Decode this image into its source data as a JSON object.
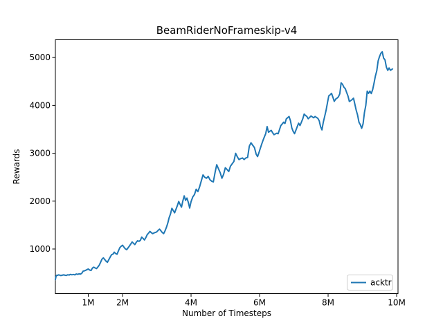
{
  "chart_data": {
    "type": "line",
    "title": "BeamRiderNoFrameskip-v4",
    "xlabel": "Number of Timesteps",
    "ylabel": "Rewards",
    "xlim": [
      0.04,
      10.04
    ],
    "ylim": [
      68,
      5371
    ],
    "grid": false,
    "legend": {
      "position": "lower right",
      "border_color": "#cccccc"
    },
    "x_unit": "millions",
    "xticks": [
      {
        "value": 1,
        "label": "1M"
      },
      {
        "value": 2,
        "label": "2M"
      },
      {
        "value": 4,
        "label": "4M"
      },
      {
        "value": 6,
        "label": "6M"
      },
      {
        "value": 8,
        "label": "8M"
      },
      {
        "value": 10,
        "label": "10M"
      }
    ],
    "yticks": [
      {
        "value": 1000,
        "label": "1000"
      },
      {
        "value": 2000,
        "label": "2000"
      },
      {
        "value": 3000,
        "label": "3000"
      },
      {
        "value": 4000,
        "label": "4000"
      },
      {
        "value": 5000,
        "label": "5000"
      }
    ],
    "series": [
      {
        "name": "acktr",
        "color": "#1f77b4",
        "points": [
          [
            0.04,
            360
          ],
          [
            0.06,
            430
          ],
          [
            0.08,
            452
          ],
          [
            0.1,
            448
          ],
          [
            0.13,
            460
          ],
          [
            0.16,
            455
          ],
          [
            0.2,
            445
          ],
          [
            0.24,
            452
          ],
          [
            0.28,
            460
          ],
          [
            0.32,
            452
          ],
          [
            0.36,
            447
          ],
          [
            0.4,
            462
          ],
          [
            0.44,
            455
          ],
          [
            0.48,
            470
          ],
          [
            0.52,
            461
          ],
          [
            0.57,
            468
          ],
          [
            0.61,
            459
          ],
          [
            0.65,
            478
          ],
          [
            0.69,
            469
          ],
          [
            0.73,
            481
          ],
          [
            0.77,
            474
          ],
          [
            0.81,
            492
          ],
          [
            0.85,
            538
          ],
          [
            0.9,
            547
          ],
          [
            0.95,
            563
          ],
          [
            1.0,
            582
          ],
          [
            1.04,
            561
          ],
          [
            1.08,
            551
          ],
          [
            1.12,
            601
          ],
          [
            1.16,
            620
          ],
          [
            1.2,
            604
          ],
          [
            1.24,
            589
          ],
          [
            1.28,
            625
          ],
          [
            1.32,
            662
          ],
          [
            1.36,
            722
          ],
          [
            1.4,
            788
          ],
          [
            1.44,
            815
          ],
          [
            1.48,
            779
          ],
          [
            1.52,
            744
          ],
          [
            1.56,
            723
          ],
          [
            1.6,
            778
          ],
          [
            1.64,
            833
          ],
          [
            1.68,
            882
          ],
          [
            1.72,
            893
          ],
          [
            1.76,
            934
          ],
          [
            1.8,
            905
          ],
          [
            1.84,
            890
          ],
          [
            1.88,
            962
          ],
          [
            1.92,
            1028
          ],
          [
            1.96,
            1057
          ],
          [
            2.0,
            1079
          ],
          [
            2.04,
            1040
          ],
          [
            2.08,
            1004
          ],
          [
            2.12,
            986
          ],
          [
            2.16,
            1022
          ],
          [
            2.2,
            1061
          ],
          [
            2.24,
            1104
          ],
          [
            2.28,
            1148
          ],
          [
            2.32,
            1119
          ],
          [
            2.36,
            1092
          ],
          [
            2.4,
            1139
          ],
          [
            2.44,
            1174
          ],
          [
            2.48,
            1161
          ],
          [
            2.52,
            1180
          ],
          [
            2.56,
            1248
          ],
          [
            2.6,
            1221
          ],
          [
            2.64,
            1190
          ],
          [
            2.68,
            1239
          ],
          [
            2.72,
            1301
          ],
          [
            2.76,
            1331
          ],
          [
            2.8,
            1368
          ],
          [
            2.84,
            1341
          ],
          [
            2.88,
            1321
          ],
          [
            2.92,
            1336
          ],
          [
            2.96,
            1345
          ],
          [
            3.0,
            1359
          ],
          [
            3.04,
            1390
          ],
          [
            3.08,
            1414
          ],
          [
            3.12,
            1379
          ],
          [
            3.16,
            1346
          ],
          [
            3.2,
            1321
          ],
          [
            3.24,
            1379
          ],
          [
            3.28,
            1451
          ],
          [
            3.32,
            1540
          ],
          [
            3.36,
            1652
          ],
          [
            3.4,
            1731
          ],
          [
            3.44,
            1849
          ],
          [
            3.48,
            1804
          ],
          [
            3.52,
            1756
          ],
          [
            3.56,
            1829
          ],
          [
            3.6,
            1905
          ],
          [
            3.64,
            1993
          ],
          [
            3.68,
            1930
          ],
          [
            3.72,
            1874
          ],
          [
            3.76,
            2001
          ],
          [
            3.8,
            2110
          ],
          [
            3.84,
            2016
          ],
          [
            3.88,
            2064
          ],
          [
            3.92,
            1972
          ],
          [
            3.96,
            1856
          ],
          [
            4.0,
            1989
          ],
          [
            4.05,
            2088
          ],
          [
            4.1,
            2139
          ],
          [
            4.15,
            2249
          ],
          [
            4.2,
            2199
          ],
          [
            4.25,
            2301
          ],
          [
            4.3,
            2428
          ],
          [
            4.35,
            2548
          ],
          [
            4.4,
            2498
          ],
          [
            4.45,
            2478
          ],
          [
            4.5,
            2519
          ],
          [
            4.55,
            2449
          ],
          [
            4.6,
            2417
          ],
          [
            4.65,
            2401
          ],
          [
            4.7,
            2598
          ],
          [
            4.75,
            2761
          ],
          [
            4.8,
            2676
          ],
          [
            4.85,
            2595
          ],
          [
            4.9,
            2478
          ],
          [
            4.95,
            2558
          ],
          [
            5.0,
            2698
          ],
          [
            5.05,
            2660
          ],
          [
            5.1,
            2619
          ],
          [
            5.15,
            2729
          ],
          [
            5.2,
            2779
          ],
          [
            5.25,
            2830
          ],
          [
            5.3,
            2999
          ],
          [
            5.35,
            2928
          ],
          [
            5.4,
            2869
          ],
          [
            5.45,
            2888
          ],
          [
            5.5,
            2901
          ],
          [
            5.55,
            2869
          ],
          [
            5.6,
            2903
          ],
          [
            5.65,
            2912
          ],
          [
            5.7,
            3148
          ],
          [
            5.75,
            3219
          ],
          [
            5.8,
            3168
          ],
          [
            5.85,
            3119
          ],
          [
            5.9,
            2979
          ],
          [
            5.94,
            2930
          ],
          [
            5.98,
            3008
          ],
          [
            6.02,
            3099
          ],
          [
            6.06,
            3188
          ],
          [
            6.1,
            3270
          ],
          [
            6.14,
            3341
          ],
          [
            6.18,
            3412
          ],
          [
            6.22,
            3557
          ],
          [
            6.26,
            3439
          ],
          [
            6.3,
            3461
          ],
          [
            6.34,
            3478
          ],
          [
            6.38,
            3430
          ],
          [
            6.42,
            3388
          ],
          [
            6.46,
            3404
          ],
          [
            6.5,
            3419
          ],
          [
            6.54,
            3408
          ],
          [
            6.58,
            3489
          ],
          [
            6.62,
            3578
          ],
          [
            6.66,
            3612
          ],
          [
            6.7,
            3648
          ],
          [
            6.74,
            3622
          ],
          [
            6.78,
            3718
          ],
          [
            6.82,
            3744
          ],
          [
            6.86,
            3769
          ],
          [
            6.9,
            3682
          ],
          [
            6.94,
            3528
          ],
          [
            6.98,
            3458
          ],
          [
            7.02,
            3409
          ],
          [
            7.06,
            3481
          ],
          [
            7.1,
            3559
          ],
          [
            7.14,
            3628
          ],
          [
            7.18,
            3579
          ],
          [
            7.22,
            3648
          ],
          [
            7.26,
            3719
          ],
          [
            7.3,
            3818
          ],
          [
            7.34,
            3792
          ],
          [
            7.38,
            3768
          ],
          [
            7.42,
            3721
          ],
          [
            7.46,
            3748
          ],
          [
            7.5,
            3779
          ],
          [
            7.54,
            3759
          ],
          [
            7.58,
            3741
          ],
          [
            7.62,
            3768
          ],
          [
            7.66,
            3748
          ],
          [
            7.7,
            3729
          ],
          [
            7.74,
            3678
          ],
          [
            7.78,
            3558
          ],
          [
            7.82,
            3488
          ],
          [
            7.86,
            3651
          ],
          [
            7.9,
            3772
          ],
          [
            7.94,
            3898
          ],
          [
            7.98,
            4049
          ],
          [
            8.02,
            4199
          ],
          [
            8.06,
            4222
          ],
          [
            8.1,
            4251
          ],
          [
            8.14,
            4168
          ],
          [
            8.18,
            4083
          ],
          [
            8.22,
            4131
          ],
          [
            8.26,
            4152
          ],
          [
            8.3,
            4179
          ],
          [
            8.34,
            4242
          ],
          [
            8.38,
            4469
          ],
          [
            8.42,
            4442
          ],
          [
            8.46,
            4381
          ],
          [
            8.5,
            4349
          ],
          [
            8.54,
            4270
          ],
          [
            8.58,
            4198
          ],
          [
            8.62,
            4082
          ],
          [
            8.66,
            4099
          ],
          [
            8.7,
            4121
          ],
          [
            8.74,
            4152
          ],
          [
            8.78,
            4029
          ],
          [
            8.82,
            3899
          ],
          [
            8.86,
            3798
          ],
          [
            8.9,
            3648
          ],
          [
            8.94,
            3599
          ],
          [
            8.98,
            3521
          ],
          [
            9.02,
            3612
          ],
          [
            9.06,
            3851
          ],
          [
            9.1,
            4001
          ],
          [
            9.14,
            4299
          ],
          [
            9.18,
            4251
          ],
          [
            9.22,
            4299
          ],
          [
            9.26,
            4248
          ],
          [
            9.3,
            4331
          ],
          [
            9.34,
            4468
          ],
          [
            9.38,
            4612
          ],
          [
            9.42,
            4721
          ],
          [
            9.46,
            4929
          ],
          [
            9.5,
            5021
          ],
          [
            9.54,
            5091
          ],
          [
            9.58,
            5119
          ],
          [
            9.62,
            4988
          ],
          [
            9.66,
            4951
          ],
          [
            9.7,
            4799
          ],
          [
            9.74,
            4732
          ],
          [
            9.78,
            4781
          ],
          [
            9.82,
            4732
          ],
          [
            9.85,
            4748
          ],
          [
            9.88,
            4761
          ]
        ]
      }
    ]
  }
}
